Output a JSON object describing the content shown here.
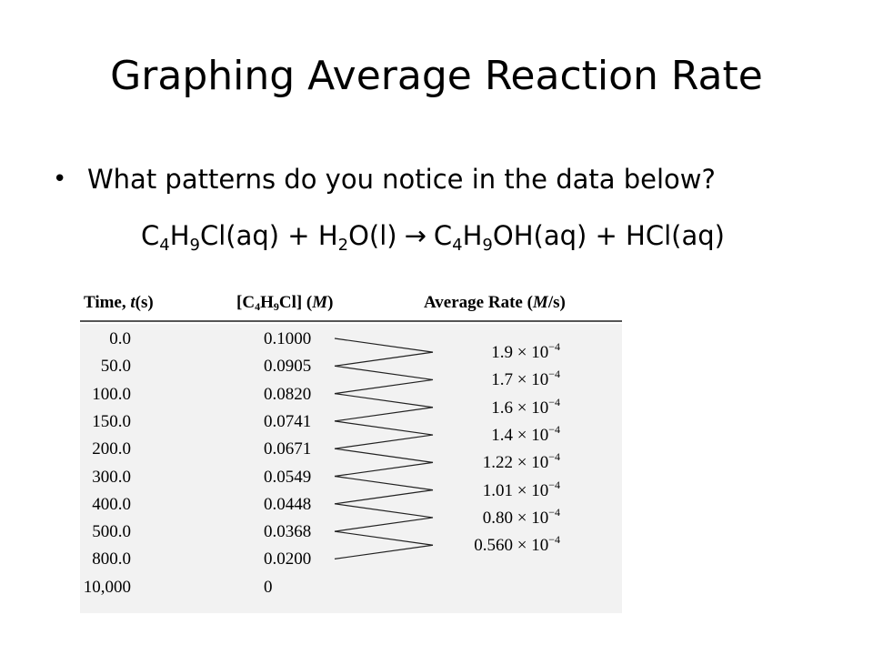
{
  "slide": {
    "title": "Graphing Average Reaction Rate",
    "bullet": "What patterns do you notice in the data below?",
    "equation": {
      "r1_a": "C",
      "r1_s1": "4",
      "r1_b": "H",
      "r1_s2": "9",
      "r1_c": "Cl(aq) + H",
      "r2_s": "2",
      "r2_c": "O(l)",
      "arrow": "→",
      "p1_a": "C",
      "p1_s1": "4",
      "p1_b": "H",
      "p1_s2": "9",
      "p1_c": "OH(aq) + HCl(aq)"
    }
  },
  "table": {
    "headers": {
      "time_a": "Time, ",
      "time_t": "t",
      "time_b": "(s)",
      "conc_a": "[C",
      "conc_s1": "4",
      "conc_b": "H",
      "conc_s2": "9",
      "conc_c": "Cl] (",
      "conc_m": "M",
      "conc_d": ")",
      "rate_a": "Average Rate (",
      "rate_m": "M",
      "rate_b": "/s)"
    },
    "rows": [
      {
        "time": "0.0",
        "conc": "0.1000"
      },
      {
        "time": "50.0",
        "conc": "0.0905"
      },
      {
        "time": "100.0",
        "conc": "0.0820"
      },
      {
        "time": "150.0",
        "conc": "0.0741"
      },
      {
        "time": "200.0",
        "conc": "0.0671"
      },
      {
        "time": "300.0",
        "conc": "0.0549"
      },
      {
        "time": "400.0",
        "conc": "0.0448"
      },
      {
        "time": "500.0",
        "conc": "0.0368"
      },
      {
        "time": "800.0",
        "conc": "0.0200"
      },
      {
        "time": "10,000",
        "conc": "0"
      }
    ],
    "rates": [
      {
        "base": "1.9 × 10",
        "exp": "−4"
      },
      {
        "base": "1.7 × 10",
        "exp": "−4"
      },
      {
        "base": "1.6 × 10",
        "exp": "−4"
      },
      {
        "base": "1.4 × 10",
        "exp": "−4"
      },
      {
        "base": "1.22 × 10",
        "exp": "−4"
      },
      {
        "base": "1.01 × 10",
        "exp": "−4"
      },
      {
        "base": "0.80 × 10",
        "exp": "−4"
      },
      {
        "base": "0.560 × 10",
        "exp": "−4"
      }
    ]
  }
}
